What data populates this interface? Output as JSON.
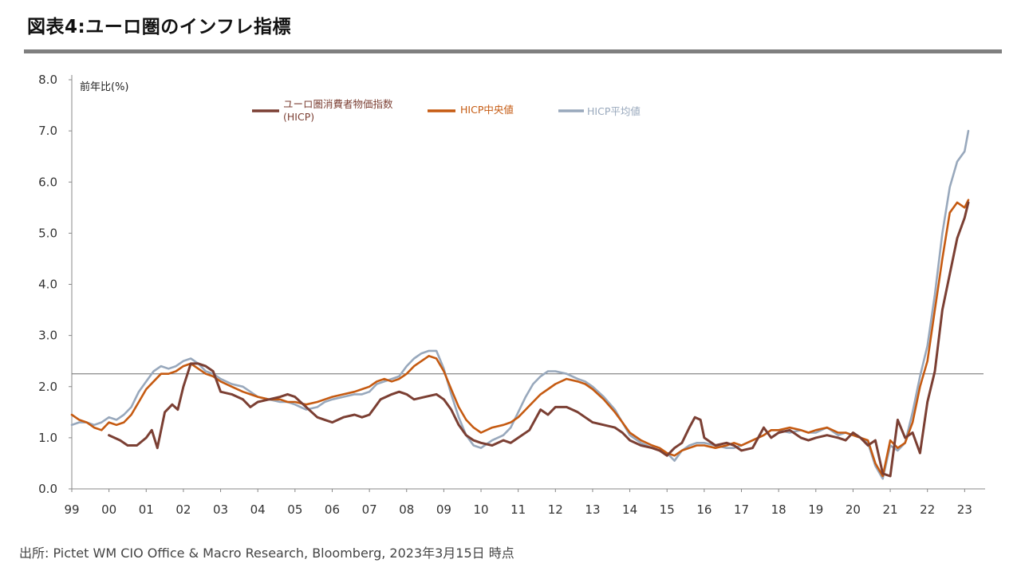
{
  "title": "図表4:ユーロ圏のインフレ指標",
  "source": "出所: Pictet WM CIO Office & Macro Research, Bloomberg, 2023年3月15日 時点",
  "chart_data": {
    "type": "line",
    "ylabel": "前年比(%)",
    "ylim": [
      0,
      8
    ],
    "yticks": [
      "0.0",
      "1.0",
      "2.0",
      "3.0",
      "4.0",
      "5.0",
      "6.0",
      "7.0",
      "8.0"
    ],
    "xlim": [
      1999,
      2023.55
    ],
    "xtick_labels": [
      "99",
      "00",
      "01",
      "02",
      "03",
      "04",
      "05",
      "06",
      "07",
      "08",
      "09",
      "10",
      "11",
      "12",
      "13",
      "14",
      "15",
      "16",
      "17",
      "18",
      "19",
      "20",
      "21",
      "22",
      "23"
    ],
    "reference_line": 2.25,
    "grid": false,
    "legend_position": "top",
    "series": [
      {
        "name": "ユーロ圏消費者物価指数\n(HICP)",
        "color": "#7b3f33",
        "x": [
          2000,
          2000.3,
          2000.5,
          2000.75,
          2001,
          2001.15,
          2001.3,
          2001.5,
          2001.7,
          2001.85,
          2002,
          2002.2,
          2002.4,
          2002.6,
          2002.8,
          2003,
          2003.3,
          2003.6,
          2003.8,
          2004,
          2004.3,
          2004.6,
          2004.8,
          2005,
          2005.3,
          2005.6,
          2005.8,
          2006,
          2006.3,
          2006.6,
          2006.8,
          2007,
          2007.3,
          2007.6,
          2007.8,
          2008,
          2008.2,
          2008.5,
          2008.8,
          2009,
          2009.2,
          2009.4,
          2009.6,
          2009.8,
          2010,
          2010.3,
          2010.6,
          2010.8,
          2011,
          2011.3,
          2011.6,
          2011.8,
          2012,
          2012.3,
          2012.6,
          2012.8,
          2013,
          2013.3,
          2013.6,
          2013.8,
          2014,
          2014.3,
          2014.6,
          2014.8,
          2015,
          2015.2,
          2015.4,
          2015.6,
          2015.75,
          2015.9,
          2016,
          2016.3,
          2016.6,
          2016.8,
          2017,
          2017.3,
          2017.6,
          2017.8,
          2018,
          2018.3,
          2018.6,
          2018.8,
          2019,
          2019.3,
          2019.6,
          2019.8,
          2020,
          2020.2,
          2020.4,
          2020.6,
          2020.8,
          2021,
          2021.2,
          2021.4,
          2021.6,
          2021.8,
          2022,
          2022.2,
          2022.4,
          2022.6,
          2022.8,
          2023,
          2023.1
        ],
        "values": [
          1.05,
          0.95,
          0.85,
          0.85,
          1.0,
          1.15,
          0.8,
          1.5,
          1.65,
          1.55,
          2.0,
          2.45,
          2.45,
          2.4,
          2.3,
          1.9,
          1.85,
          1.75,
          1.6,
          1.7,
          1.75,
          1.8,
          1.85,
          1.8,
          1.6,
          1.4,
          1.35,
          1.3,
          1.4,
          1.45,
          1.4,
          1.45,
          1.75,
          1.85,
          1.9,
          1.85,
          1.75,
          1.8,
          1.85,
          1.75,
          1.55,
          1.25,
          1.05,
          0.95,
          0.9,
          0.85,
          0.95,
          0.9,
          1.0,
          1.15,
          1.55,
          1.45,
          1.6,
          1.6,
          1.5,
          1.4,
          1.3,
          1.25,
          1.2,
          1.1,
          0.95,
          0.85,
          0.8,
          0.75,
          0.65,
          0.8,
          0.9,
          1.2,
          1.4,
          1.35,
          1.0,
          0.85,
          0.9,
          0.85,
          0.75,
          0.8,
          1.2,
          1.0,
          1.1,
          1.15,
          1.0,
          0.95,
          1.0,
          1.05,
          1.0,
          0.95,
          1.1,
          1.0,
          0.85,
          0.95,
          0.3,
          0.25,
          1.35,
          1.0,
          1.1,
          0.7,
          1.7,
          2.3,
          3.5,
          4.2,
          4.9,
          5.3,
          5.6
        ]
      },
      {
        "name": "HICP中央値",
        "color": "#c55a11",
        "x": [
          1999,
          1999.2,
          1999.4,
          1999.6,
          1999.8,
          2000,
          2000.2,
          2000.4,
          2000.6,
          2000.8,
          2001,
          2001.2,
          2001.4,
          2001.6,
          2001.8,
          2002,
          2002.2,
          2002.4,
          2002.6,
          2002.8,
          2003,
          2003.3,
          2003.6,
          2003.8,
          2004,
          2004.3,
          2004.6,
          2004.8,
          2005,
          2005.3,
          2005.6,
          2005.8,
          2006,
          2006.3,
          2006.6,
          2006.8,
          2007,
          2007.2,
          2007.4,
          2007.6,
          2007.8,
          2008,
          2008.2,
          2008.4,
          2008.6,
          2008.8,
          2009,
          2009.2,
          2009.4,
          2009.6,
          2009.8,
          2010,
          2010.3,
          2010.6,
          2010.8,
          2011,
          2011.2,
          2011.4,
          2011.6,
          2011.8,
          2012,
          2012.3,
          2012.6,
          2012.8,
          2013,
          2013.3,
          2013.6,
          2013.8,
          2014,
          2014.3,
          2014.6,
          2014.8,
          2015,
          2015.2,
          2015.4,
          2015.6,
          2015.8,
          2016,
          2016.3,
          2016.6,
          2016.8,
          2017,
          2017.3,
          2017.6,
          2017.8,
          2018,
          2018.3,
          2018.6,
          2018.8,
          2019,
          2019.3,
          2019.6,
          2019.8,
          2020,
          2020.2,
          2020.4,
          2020.6,
          2020.8,
          2021,
          2021.2,
          2021.4,
          2021.6,
          2021.8,
          2022,
          2022.2,
          2022.4,
          2022.6,
          2022.8,
          2023,
          2023.1
        ],
        "values": [
          1.45,
          1.35,
          1.3,
          1.2,
          1.15,
          1.3,
          1.25,
          1.3,
          1.45,
          1.7,
          1.95,
          2.1,
          2.25,
          2.25,
          2.3,
          2.4,
          2.45,
          2.35,
          2.25,
          2.2,
          2.1,
          2.0,
          1.9,
          1.85,
          1.8,
          1.75,
          1.75,
          1.7,
          1.7,
          1.65,
          1.7,
          1.75,
          1.8,
          1.85,
          1.9,
          1.95,
          2.0,
          2.1,
          2.15,
          2.1,
          2.15,
          2.25,
          2.4,
          2.5,
          2.6,
          2.55,
          2.3,
          1.95,
          1.6,
          1.35,
          1.2,
          1.1,
          1.2,
          1.25,
          1.3,
          1.4,
          1.55,
          1.7,
          1.85,
          1.95,
          2.05,
          2.15,
          2.1,
          2.05,
          1.95,
          1.75,
          1.5,
          1.3,
          1.1,
          0.95,
          0.85,
          0.8,
          0.7,
          0.65,
          0.75,
          0.8,
          0.85,
          0.85,
          0.8,
          0.85,
          0.9,
          0.85,
          0.95,
          1.05,
          1.15,
          1.15,
          1.2,
          1.15,
          1.1,
          1.15,
          1.2,
          1.1,
          1.1,
          1.05,
          1.0,
          0.95,
          0.5,
          0.25,
          0.95,
          0.8,
          0.9,
          1.3,
          2.0,
          2.5,
          3.5,
          4.5,
          5.4,
          5.6,
          5.5,
          5.65
        ]
      },
      {
        "name": "HICP平均値",
        "color": "#98a8bc",
        "x": [
          1999,
          1999.2,
          1999.4,
          1999.6,
          1999.8,
          2000,
          2000.2,
          2000.4,
          2000.6,
          2000.8,
          2001,
          2001.2,
          2001.4,
          2001.6,
          2001.8,
          2002,
          2002.2,
          2002.4,
          2002.6,
          2002.8,
          2003,
          2003.3,
          2003.6,
          2003.8,
          2004,
          2004.3,
          2004.6,
          2004.8,
          2005,
          2005.3,
          2005.6,
          2005.8,
          2006,
          2006.3,
          2006.6,
          2006.8,
          2007,
          2007.2,
          2007.4,
          2007.6,
          2007.8,
          2008,
          2008.2,
          2008.4,
          2008.6,
          2008.8,
          2009,
          2009.2,
          2009.4,
          2009.6,
          2009.8,
          2010,
          2010.3,
          2010.6,
          2010.8,
          2011,
          2011.2,
          2011.4,
          2011.6,
          2011.8,
          2012,
          2012.3,
          2012.6,
          2012.8,
          2013,
          2013.3,
          2013.6,
          2013.8,
          2014,
          2014.3,
          2014.6,
          2014.8,
          2015,
          2015.2,
          2015.4,
          2015.6,
          2015.8,
          2016,
          2016.3,
          2016.6,
          2016.8,
          2017,
          2017.3,
          2017.6,
          2017.8,
          2018,
          2018.3,
          2018.6,
          2018.8,
          2019,
          2019.3,
          2019.6,
          2019.8,
          2020,
          2020.2,
          2020.4,
          2020.6,
          2020.8,
          2021,
          2021.2,
          2021.4,
          2021.6,
          2021.8,
          2022,
          2022.2,
          2022.4,
          2022.6,
          2022.8,
          2023,
          2023.1
        ],
        "values": [
          1.25,
          1.3,
          1.3,
          1.25,
          1.3,
          1.4,
          1.35,
          1.45,
          1.6,
          1.9,
          2.1,
          2.3,
          2.4,
          2.35,
          2.4,
          2.5,
          2.55,
          2.45,
          2.3,
          2.25,
          2.15,
          2.05,
          2.0,
          1.9,
          1.8,
          1.75,
          1.7,
          1.7,
          1.65,
          1.55,
          1.6,
          1.7,
          1.75,
          1.8,
          1.85,
          1.85,
          1.9,
          2.05,
          2.1,
          2.15,
          2.2,
          2.4,
          2.55,
          2.65,
          2.7,
          2.7,
          2.35,
          1.85,
          1.4,
          1.05,
          0.85,
          0.8,
          0.95,
          1.05,
          1.2,
          1.5,
          1.8,
          2.05,
          2.2,
          2.3,
          2.3,
          2.25,
          2.15,
          2.1,
          2.0,
          1.8,
          1.55,
          1.3,
          1.05,
          0.9,
          0.8,
          0.75,
          0.7,
          0.55,
          0.75,
          0.85,
          0.9,
          0.9,
          0.85,
          0.8,
          0.8,
          0.85,
          0.95,
          1.05,
          1.15,
          1.15,
          1.1,
          1.15,
          1.1,
          1.1,
          1.2,
          1.05,
          1.1,
          1.05,
          1.0,
          0.9,
          0.45,
          0.2,
          0.85,
          0.75,
          0.9,
          1.5,
          2.2,
          2.8,
          3.8,
          5.0,
          5.9,
          6.4,
          6.6,
          7.0
        ]
      }
    ]
  }
}
